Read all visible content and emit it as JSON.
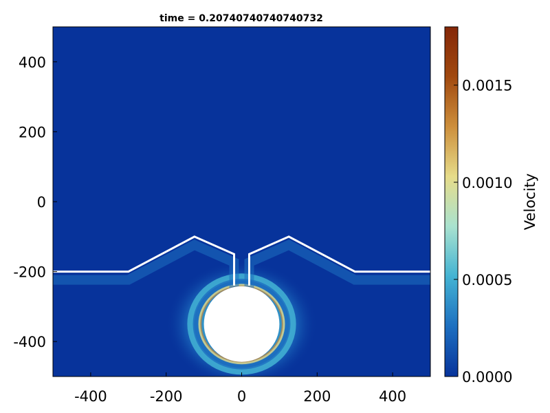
{
  "chart_data": {
    "type": "heatmap",
    "title": "time = 0.20740740740740732",
    "xlabel": "",
    "ylabel": "",
    "xlim": [
      -500,
      500
    ],
    "ylim": [
      -500,
      500
    ],
    "x_ticks": [
      -400,
      -200,
      0,
      200,
      400
    ],
    "y_ticks": [
      400,
      200,
      0,
      -200,
      -400
    ],
    "x_tick_labels": [
      "-400",
      "-200",
      "0",
      "200",
      "400"
    ],
    "y_tick_labels": [
      "400",
      "200",
      "0",
      "-200",
      "-400"
    ],
    "grid": false,
    "background_color": "#07339b",
    "colorbar": {
      "label": "Velocity",
      "range": [
        0.0,
        0.0018
      ],
      "ticks": [
        0.0,
        0.0005,
        0.001,
        0.0015
      ],
      "tick_labels": [
        "0.0000",
        "0.0005",
        "0.0010",
        "0.0015"
      ],
      "colormap_stops": [
        "#07339b",
        "#1d6fc0",
        "#43b3d3",
        "#a9e2cf",
        "#e6dc8a",
        "#cd8f3c",
        "#a1490f",
        "#842708"
      ]
    },
    "geometry": {
      "wall_color": "#ffffff",
      "left_wall": [
        [
          -500,
          -200
        ],
        [
          -300,
          -200
        ],
        [
          -125,
          -100
        ],
        [
          -20,
          -150
        ],
        [
          -20,
          -240
        ]
      ],
      "right_wall": [
        [
          20,
          -240
        ],
        [
          20,
          -150
        ],
        [
          125,
          -100
        ],
        [
          300,
          -200
        ],
        [
          500,
          -200
        ]
      ],
      "ring_center": [
        0,
        -350
      ],
      "ring_outer_radius": 105,
      "ring_inner_radius": 100,
      "hole_radius": 100
    }
  }
}
